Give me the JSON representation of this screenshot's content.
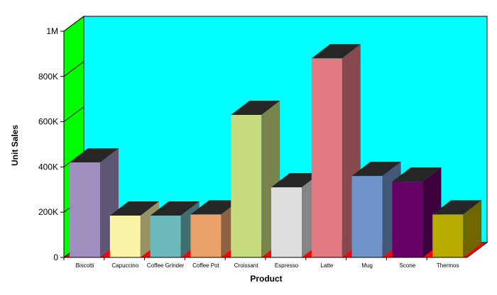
{
  "chart_data": {
    "type": "bar",
    "title": "",
    "xlabel": "Product",
    "ylabel": "Unit Sales",
    "ylim": [
      0,
      1000000
    ],
    "yticks": [
      0,
      200000,
      400000,
      600000,
      800000,
      1000000
    ],
    "ytick_labels": [
      "0",
      "200K",
      "400K",
      "600K",
      "800K",
      "1M"
    ],
    "categories": [
      "Biscotti",
      "Capuccino",
      "Coffee Grinder",
      "Coffee Pot",
      "Croissant",
      "Espresso",
      "Latte",
      "Mug",
      "Scone",
      "Thermos"
    ],
    "values": [
      420000,
      185000,
      185000,
      190000,
      630000,
      310000,
      880000,
      360000,
      335000,
      190000
    ],
    "bar_colors": [
      "#9e8fbf",
      "#fbf3a6",
      "#6bb9bb",
      "#eba26a",
      "#c6dc7e",
      "#dedede",
      "#e37a82",
      "#6f93c8",
      "#660066",
      "#b9aa00"
    ],
    "wall_colors": {
      "back": "#00ffff",
      "left": "#00ff00",
      "floor": "#ff0000"
    },
    "grid": false,
    "legend": "none"
  }
}
